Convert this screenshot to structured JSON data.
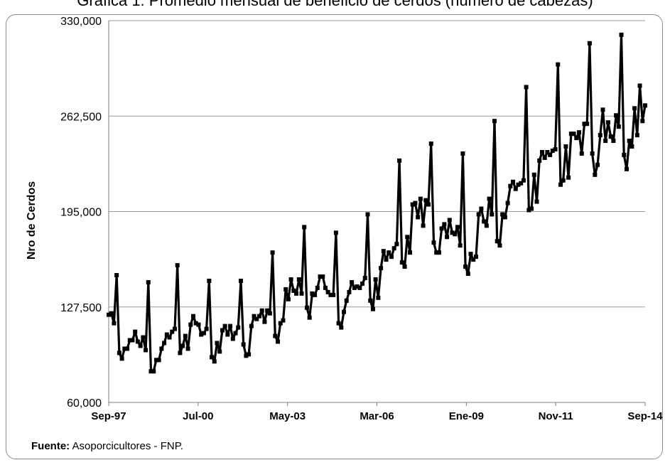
{
  "chart_data": {
    "type": "line",
    "title": "Gráfica 1: Promedio mensual de beneficio de cerdos (número de cabezas)",
    "ylabel": "Nro de Cerdos",
    "xlabel": "",
    "ylim": [
      60000,
      330000
    ],
    "yticks": [
      "330,000",
      "262,500",
      "195,000",
      "127,500",
      "60,000"
    ],
    "xticks": [
      "Sep-97",
      "Jul-00",
      "May-03",
      "Mar-06",
      "Ene-09",
      "Nov-11",
      "Sep-14"
    ],
    "grid": "horizontal",
    "series_color": "#000000",
    "series": [
      {
        "values": [
          122000,
          123000,
          116000,
          150000,
          95000,
          91000,
          98000,
          98000,
          104000,
          104000,
          110000,
          103000,
          100000,
          106000,
          97000,
          145000,
          82000,
          82000,
          90000,
          90000,
          98000,
          102000,
          108000,
          106000,
          110000,
          112000,
          157000,
          95000,
          100000,
          107000,
          98000,
          115000,
          121000,
          116000,
          115000,
          108000,
          109000,
          112000,
          146000,
          92000,
          89000,
          102000,
          96000,
          111000,
          114000,
          108000,
          114000,
          105000,
          109000,
          113000,
          146000,
          101000,
          93000,
          94000,
          114000,
          121000,
          119000,
          121000,
          125000,
          117000,
          125000,
          123000,
          166000,
          107000,
          103000,
          116000,
          118000,
          140000,
          133000,
          147000,
          139000,
          137000,
          147000,
          137000,
          184000,
          127000,
          120000,
          137000,
          136000,
          141000,
          149000,
          149000,
          141000,
          138000,
          136000,
          136000,
          180000,
          116000,
          113000,
          124000,
          132000,
          138000,
          145000,
          141000,
          142000,
          141000,
          144000,
          148000,
          193000,
          132000,
          126000,
          147000,
          134000,
          155000,
          167000,
          161000,
          166000,
          163000,
          169000,
          172000,
          231000,
          159000,
          156000,
          177000,
          166000,
          200000,
          201000,
          191000,
          204000,
          185000,
          203000,
          200000,
          243000,
          173000,
          166000,
          166000,
          183000,
          186000,
          177000,
          189000,
          180000,
          179000,
          184000,
          171000,
          236000,
          156000,
          151000,
          165000,
          161000,
          163000,
          193000,
          197000,
          188000,
          185000,
          204000,
          193000,
          259000,
          174000,
          171000,
          193000,
          191000,
          201000,
          213000,
          216000,
          211000,
          214000,
          215000,
          217000,
          283000,
          196000,
          197000,
          221000,
          202000,
          231000,
          237000,
          233000,
          237000,
          235000,
          238000,
          239000,
          299000,
          214000,
          217000,
          241000,
          219000,
          250000,
          250000,
          247000,
          251000,
          236000,
          257000,
          257000,
          314000,
          236000,
          221000,
          228000,
          249000,
          267000,
          245000,
          258000,
          248000,
          245000,
          263000,
          255000,
          320000,
          235000,
          225000,
          245000,
          241000,
          268000,
          249000,
          284000,
          259000,
          270000
        ]
      }
    ],
    "source_label": "Fuente:",
    "source_text": " Asoporcicultores - FNP."
  }
}
